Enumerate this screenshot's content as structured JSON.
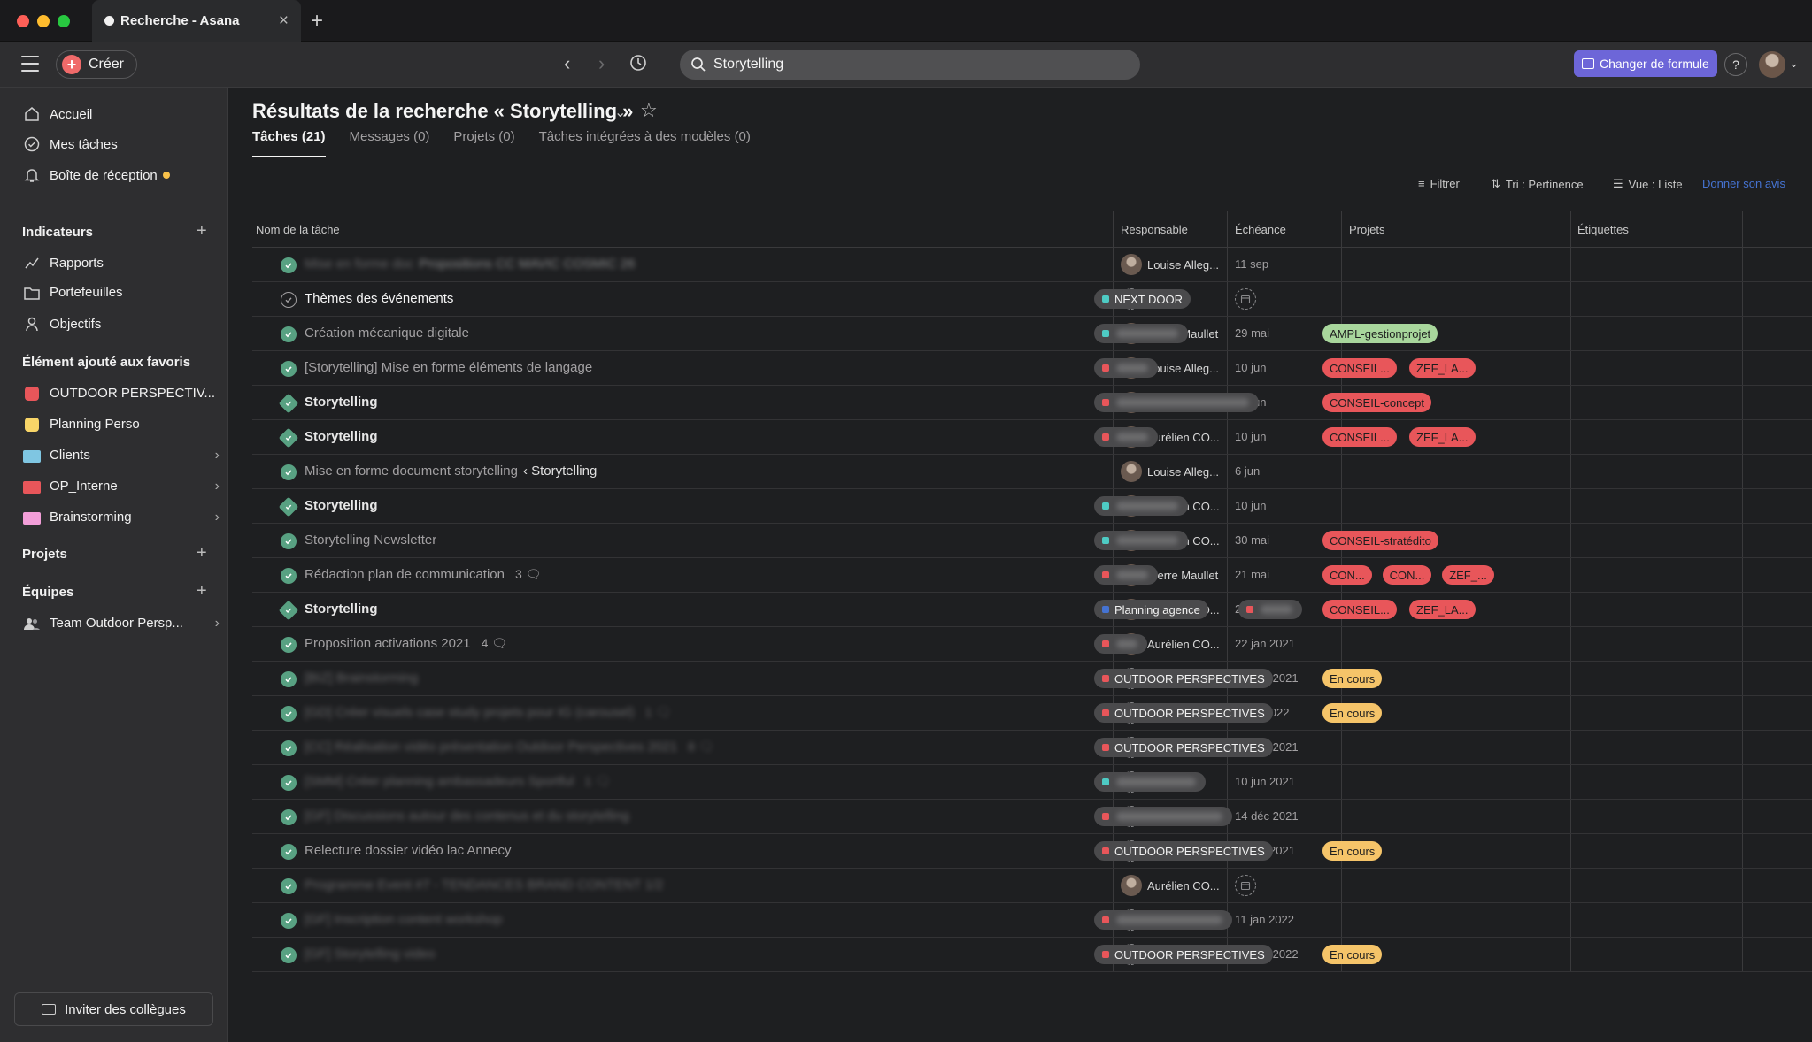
{
  "browser": {
    "tab_title": "Recherche - Asana"
  },
  "topbar": {
    "create_label": "Créer",
    "search_value": "Storytelling",
    "upgrade_label": "Changer de formule",
    "help_label": "?"
  },
  "sidebar": {
    "nav": [
      {
        "label": "Accueil",
        "icon": "home-icon"
      },
      {
        "label": "Mes tâches",
        "icon": "check-circle-icon"
      },
      {
        "label": "Boîte de réception",
        "icon": "bell-icon"
      }
    ],
    "indicators_title": "Indicateurs",
    "indicators": [
      {
        "label": "Rapports",
        "icon": "chart-line-icon"
      },
      {
        "label": "Portefeuilles",
        "icon": "folder-icon"
      },
      {
        "label": "Objectifs",
        "icon": "person-icon"
      }
    ],
    "favorites_title": "Élément ajouté aux favoris",
    "favorites": [
      {
        "label": "OUTDOOR PERSPECTIV...",
        "color": "#e8565a",
        "kind": "square"
      },
      {
        "label": "Planning Perso",
        "color": "#f8d568",
        "kind": "square"
      },
      {
        "label": "Clients",
        "color": "#7fc6e2",
        "kind": "folder"
      },
      {
        "label": "OP_Interne",
        "color": "#e8565a",
        "kind": "folder"
      },
      {
        "label": "Brainstorming",
        "color": "#f29ed8",
        "kind": "folder"
      }
    ],
    "projects_title": "Projets",
    "teams_title": "Équipes",
    "team_item": "Team Outdoor Persp...",
    "invite_label": "Inviter des collègues"
  },
  "main": {
    "title": "Résultats de la recherche « Storytelling »",
    "tabs": [
      "Tâches (21)",
      "Messages (0)",
      "Projets (0)",
      "Tâches intégrées à des modèles (0)"
    ],
    "toolbar": {
      "filter": "Filtrer",
      "sort": "Tri : Pertinence",
      "view": "Vue : Liste",
      "feedback": "Donner son avis"
    },
    "columns": [
      "Nom de la tâche",
      "Responsable",
      "Échéance",
      "Projets",
      "Étiquettes"
    ]
  },
  "colors": {
    "accent": "#6d66d8",
    "check_green": "#58a182",
    "tag_red": "#e8565a",
    "tag_green": "#a8d69c",
    "tag_yellow": "#f5c469",
    "project_teal": "#4ecbc4",
    "project_red": "#e8565a",
    "project_blue": "#4573d2"
  },
  "rows": [
    {
      "name": "Mise en forme doc",
      "parent": "Propositions CC MAVIC COSMIC 26",
      "assignee": "Louise Alleg...",
      "due": "11 sep",
      "blurred": true,
      "style": "muted",
      "check": "done"
    },
    {
      "name": "Thèmes des événements",
      "assignee": "",
      "due": "",
      "style": "white",
      "check": "open",
      "projects": [
        {
          "label": "NEXT DOOR",
          "color": "#4ecbc4"
        }
      ]
    },
    {
      "name": "Création mécanique digitale",
      "assignee": "Pierre Maullet",
      "due": "29 mai",
      "style": "muted",
      "check": "done",
      "hidden_projects": [
        {
          "color": "#4ecbc4",
          "w": 70
        }
      ],
      "tags": [
        {
          "label": "AMPL-gestionprojet",
          "color": "green"
        }
      ]
    },
    {
      "name": "[Storytelling] Mise en forme éléments de langage",
      "assignee": "Louise Alleg...",
      "due": "10 jun",
      "style": "muted",
      "check": "done",
      "hidden_projects": [
        {
          "color": "#e8565a",
          "w": 36
        }
      ],
      "tags": [
        {
          "label": "CONSEIL...",
          "color": "red"
        },
        {
          "label": "ZEF_LA...",
          "color": "red"
        }
      ]
    },
    {
      "name": "Storytelling",
      "assignee": "Aurélien CO...",
      "due": "10 jun",
      "style": "bold",
      "check": "diamond",
      "hidden_projects": [
        {
          "color": "#e8565a",
          "w": 150
        }
      ],
      "tags": [
        {
          "label": "CONSEIL-concept",
          "color": "red"
        }
      ]
    },
    {
      "name": "Storytelling",
      "assignee": "Aurélien CO...",
      "due": "10 jun",
      "style": "bold",
      "check": "diamond",
      "hidden_projects": [
        {
          "color": "#e8565a",
          "w": 36
        }
      ],
      "tags": [
        {
          "label": "CONSEIL...",
          "color": "red"
        },
        {
          "label": "ZEF_LA...",
          "color": "red"
        }
      ]
    },
    {
      "name": "Mise en forme document storytelling",
      "parent": "‹ Storytelling",
      "assignee": "Louise Alleg...",
      "due": "6 jun",
      "style": "muted",
      "check": "done"
    },
    {
      "name": "Storytelling",
      "assignee": "Aurélien CO...",
      "due": "10 jun",
      "style": "bold",
      "check": "diamond",
      "hidden_projects": [
        {
          "color": "#4ecbc4",
          "w": 70
        }
      ]
    },
    {
      "name": "Storytelling Newsletter",
      "assignee": "Aurélien CO...",
      "due": "30 mai",
      "style": "muted",
      "check": "done",
      "hidden_projects": [
        {
          "color": "#4ecbc4",
          "w": 70
        }
      ],
      "tags": [
        {
          "label": "CONSEIL-stratédito",
          "color": "red"
        }
      ]
    },
    {
      "name": "Rédaction plan de communication",
      "comments": "3",
      "assignee": "Pierre Maullet",
      "due": "21 mai",
      "style": "muted",
      "check": "done",
      "hidden_projects": [
        {
          "color": "#e8565a",
          "w": 36
        }
      ],
      "tags": [
        {
          "label": "CON...",
          "color": "red"
        },
        {
          "label": "CON...",
          "color": "red"
        },
        {
          "label": "ZEF_...",
          "color": "red"
        }
      ]
    },
    {
      "name": "Storytelling",
      "assignee": "Aurélien CO...",
      "due": "20 mar",
      "style": "bold",
      "check": "diamond",
      "projects": [
        {
          "label": "Planning agence",
          "color": "#4573d2"
        }
      ],
      "hidden_projects_after": [
        {
          "color": "#e8565a",
          "w": 36
        }
      ],
      "tags": [
        {
          "label": "CONSEIL...",
          "color": "red"
        },
        {
          "label": "ZEF_LA...",
          "color": "red"
        }
      ]
    },
    {
      "name": "Proposition activations 2021",
      "comments": "4",
      "assignee": "Aurélien CO...",
      "due": "22 jan 2021",
      "style": "muted",
      "check": "done",
      "hidden_projects": [
        {
          "color": "#e8565a",
          "w": 24
        }
      ]
    },
    {
      "name": "[BIZ] Brainstorming",
      "assignee": "",
      "due": "22 sep 2021",
      "blurred": true,
      "style": "muted",
      "check": "done",
      "projects": [
        {
          "label": "OUTDOOR PERSPECTIVES",
          "color": "#e8565a"
        }
      ],
      "tags": [
        {
          "label": "En cours",
          "color": "yellow"
        }
      ]
    },
    {
      "name": "[GD] Créer visuels case study projets pour IG (carousel)",
      "comments": "1",
      "assignee": "",
      "due": "4 avr 2022",
      "blurred": true,
      "style": "muted",
      "check": "done",
      "projects": [
        {
          "label": "OUTDOOR PERSPECTIVES",
          "color": "#e8565a"
        }
      ],
      "tags": [
        {
          "label": "En cours",
          "color": "yellow"
        }
      ]
    },
    {
      "name": "[CC] Réalisation vidéo présentation Outdoor Perspectives 2021",
      "comments": "8",
      "assignee": "",
      "due": "10 déc 2021",
      "blurred": true,
      "style": "muted",
      "check": "done",
      "projects": [
        {
          "label": "OUTDOOR PERSPECTIVES",
          "color": "#e8565a"
        }
      ]
    },
    {
      "name": "[SMM] Créer planning ambassadeurs Sportful",
      "comments": "1",
      "assignee": "",
      "due": "10 jun 2021",
      "blurred": true,
      "style": "muted",
      "check": "done",
      "hidden_projects": [
        {
          "color": "#4ecbc4",
          "w": 90
        }
      ]
    },
    {
      "name": "[GF] Discussions autour des contenus et du storytelling",
      "assignee": "",
      "due": "14 déc 2021",
      "blurred": true,
      "style": "muted",
      "check": "done",
      "hidden_projects": [
        {
          "color": "#e8565a",
          "w": 120
        }
      ]
    },
    {
      "name": "Relecture dossier vidéo lac Annecy",
      "assignee": "",
      "due": "17 jun 2021",
      "style": "muted",
      "check": "done",
      "projects": [
        {
          "label": "OUTDOOR PERSPECTIVES",
          "color": "#e8565a"
        }
      ],
      "tags": [
        {
          "label": "En cours",
          "color": "yellow"
        }
      ]
    },
    {
      "name": "Programme Event #7 - TENDANCES BRAND CONTENT 1/2",
      "assignee": "Aurélien CO...",
      "due": "",
      "blurred": true,
      "style": "muted",
      "check": "done"
    },
    {
      "name": "[GF] Inscription content workshop",
      "assignee": "",
      "due": "11 jan 2022",
      "blurred": true,
      "style": "muted",
      "check": "done",
      "hidden_projects": [
        {
          "color": "#e8565a",
          "w": 120
        }
      ]
    },
    {
      "name": "[GF] Storytelling video",
      "assignee": "",
      "due": "21 nov 2022",
      "blurred": true,
      "style": "muted",
      "check": "done",
      "projects": [
        {
          "label": "OUTDOOR PERSPECTIVES",
          "color": "#e8565a"
        }
      ],
      "tags": [
        {
          "label": "En cours",
          "color": "yellow"
        }
      ]
    }
  ]
}
